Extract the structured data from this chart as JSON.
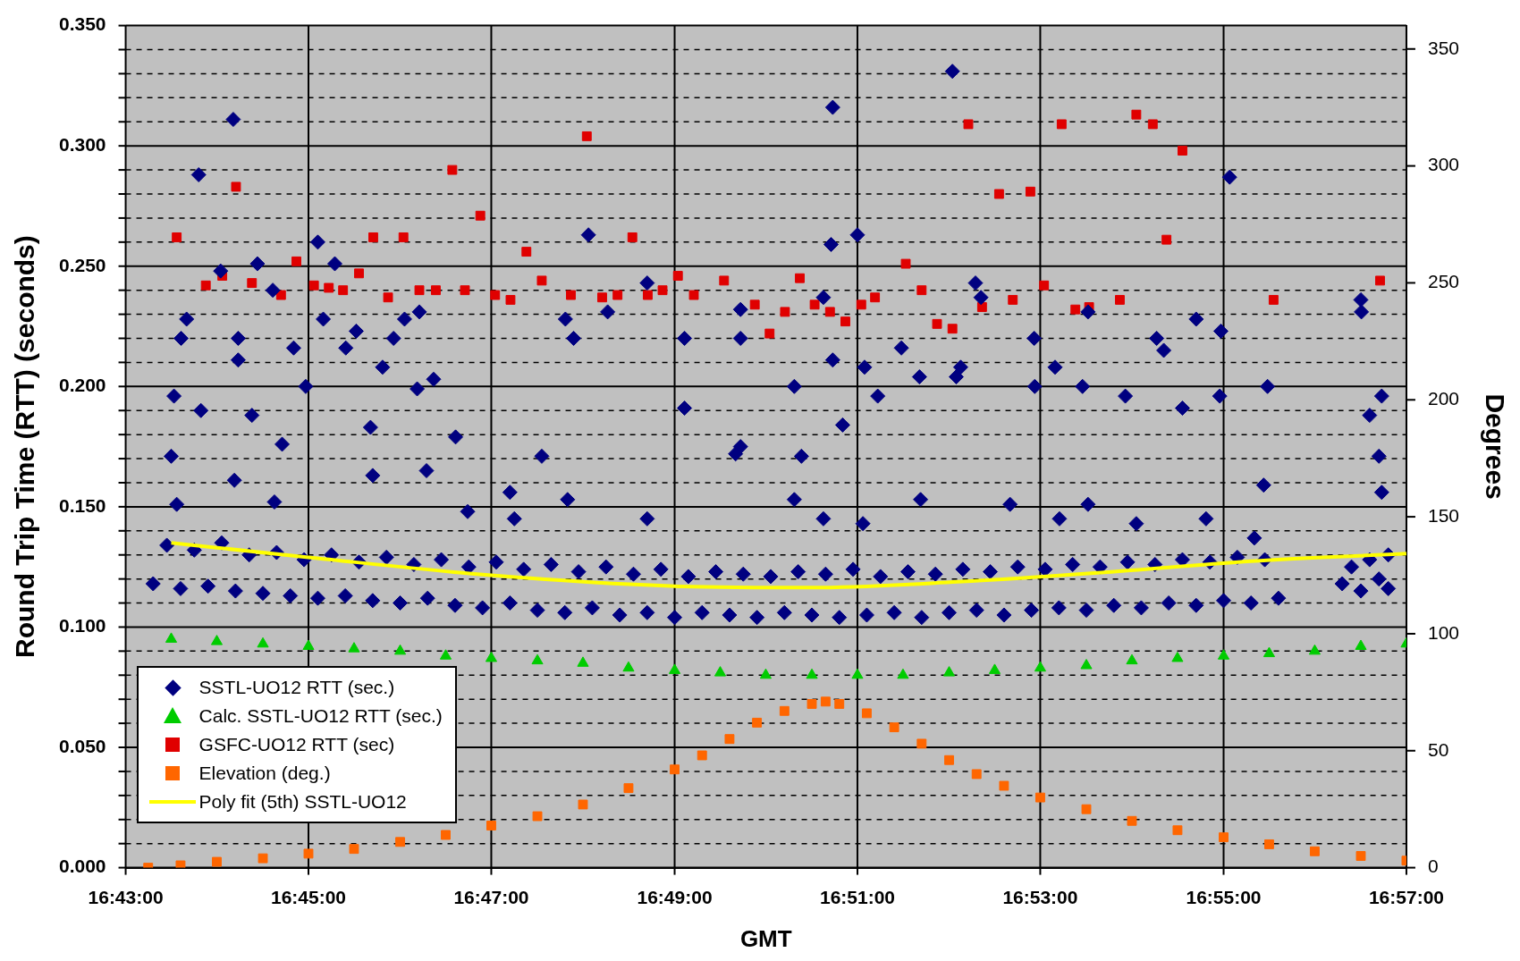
{
  "chart_data": {
    "type": "scatter",
    "xlabel": "GMT",
    "ylabel": "Round Trip Time (RTT) (seconds)",
    "y2label": "Degrees",
    "xlim": [
      16.7167,
      16.95
    ],
    "xticks": [
      {
        "value": 16.7167,
        "label": "16:43:00"
      },
      {
        "value": 16.75,
        "label": "16:45:00"
      },
      {
        "value": 16.7833,
        "label": "16:47:00"
      },
      {
        "value": 16.8167,
        "label": "16:49:00"
      },
      {
        "value": 16.85,
        "label": "16:51:00"
      },
      {
        "value": 16.8833,
        "label": "16:53:00"
      },
      {
        "value": 16.9167,
        "label": "16:55:00"
      },
      {
        "value": 16.95,
        "label": "16:57:00"
      }
    ],
    "ylim": [
      0,
      0.35
    ],
    "yticks": [
      {
        "value": 0,
        "label": "0.000"
      },
      {
        "value": 0.01,
        "label": null
      },
      {
        "value": 0.02,
        "label": null
      },
      {
        "value": 0.03,
        "label": null
      },
      {
        "value": 0.04,
        "label": null
      },
      {
        "value": 0.05,
        "label": "0.050"
      },
      {
        "value": 0.06,
        "label": null
      },
      {
        "value": 0.07,
        "label": null
      },
      {
        "value": 0.08,
        "label": null
      },
      {
        "value": 0.09,
        "label": null
      },
      {
        "value": 0.1,
        "label": "0.100"
      },
      {
        "value": 0.11,
        "label": null
      },
      {
        "value": 0.12,
        "label": null
      },
      {
        "value": 0.13,
        "label": null
      },
      {
        "value": 0.14,
        "label": null
      },
      {
        "value": 0.15,
        "label": "0.150"
      },
      {
        "value": 0.16,
        "label": null
      },
      {
        "value": 0.17,
        "label": null
      },
      {
        "value": 0.18,
        "label": null
      },
      {
        "value": 0.19,
        "label": null
      },
      {
        "value": 0.2,
        "label": "0.200"
      },
      {
        "value": 0.21,
        "label": null
      },
      {
        "value": 0.22,
        "label": null
      },
      {
        "value": 0.23,
        "label": null
      },
      {
        "value": 0.24,
        "label": null
      },
      {
        "value": 0.25,
        "label": "0.250"
      },
      {
        "value": 0.26,
        "label": null
      },
      {
        "value": 0.27,
        "label": null
      },
      {
        "value": 0.28,
        "label": null
      },
      {
        "value": 0.29,
        "label": null
      },
      {
        "value": 0.3,
        "label": "0.300"
      },
      {
        "value": 0.31,
        "label": null
      },
      {
        "value": 0.32,
        "label": null
      },
      {
        "value": 0.33,
        "label": null
      },
      {
        "value": 0.34,
        "label": null
      },
      {
        "value": 0.35,
        "label": "0.350"
      }
    ],
    "y2lim": [
      0,
      360
    ],
    "y2ticks": [
      0,
      50,
      100,
      150,
      200,
      250,
      300,
      350
    ],
    "grid": true,
    "legend": "bottom left",
    "series": [
      {
        "name": "SSTL-UO12 RTT (sec.)",
        "type": "scatter",
        "marker": "diamond",
        "color": "#000080",
        "x": [
          16.7217,
          16.7267,
          16.7317,
          16.7367,
          16.7417,
          16.7467,
          16.7517,
          16.7567,
          16.7617,
          16.7667,
          16.7717,
          16.7767,
          16.7817,
          16.7867,
          16.7917,
          16.7967,
          16.8017,
          16.8067,
          16.8117,
          16.8167,
          16.8217,
          16.8267,
          16.8317,
          16.8367,
          16.8417,
          16.8467,
          16.8517,
          16.8567,
          16.8617,
          16.8667,
          16.8717,
          16.8767,
          16.8817,
          16.8867,
          16.8917,
          16.8967,
          16.9017,
          16.9067,
          16.9117,
          16.9167,
          16.9217,
          16.9267,
          16.7242,
          16.7292,
          16.7342,
          16.7392,
          16.7442,
          16.7492,
          16.7542,
          16.7592,
          16.7642,
          16.7692,
          16.7742,
          16.7792,
          16.7842,
          16.7892,
          16.7942,
          16.7992,
          16.8042,
          16.8092,
          16.8142,
          16.8192,
          16.8242,
          16.8292,
          16.8342,
          16.8392,
          16.8442,
          16.8492,
          16.8542,
          16.8592,
          16.8642,
          16.8692,
          16.8742,
          16.8792,
          16.8842,
          16.8892,
          16.8942,
          16.8992,
          16.9042,
          16.9092,
          16.9142,
          16.9192,
          16.9242,
          16.9383,
          16.94,
          16.9417,
          16.9433,
          16.945,
          16.9467,
          16.9467,
          16.725,
          16.7255,
          16.7268,
          16.7278,
          16.73,
          16.7304,
          16.734,
          16.7363,
          16.7372,
          16.7372,
          16.7397,
          16.7407,
          16.7435,
          16.7452,
          16.7473,
          16.7495,
          16.7517,
          16.7527,
          16.7548,
          16.7568,
          16.7587,
          16.7613,
          16.7635,
          16.7655,
          16.7675,
          16.7698,
          16.7702,
          16.7728,
          16.7768,
          16.779,
          16.7867,
          16.7925,
          16.7968,
          16.7983,
          16.801,
          16.8045,
          16.8117,
          16.8185,
          16.8185,
          16.8287,
          16.8287,
          16.8287,
          16.8385,
          16.8398,
          16.8438,
          16.8452,
          16.8455,
          16.8455,
          16.8473,
          16.85,
          16.8513,
          16.8537,
          16.858,
          16.8613,
          16.8673,
          16.868,
          16.8688,
          16.8715,
          16.8725,
          16.8822,
          16.8823,
          16.886,
          16.891,
          16.892,
          16.8988,
          16.9045,
          16.9058,
          16.9092,
          16.9117,
          16.9162,
          16.916,
          16.9178,
          16.9247,
          16.9417,
          16.9418,
          16.9433,
          16.9455,
          16.945,
          16.9455,
          16.726,
          16.7365,
          16.7438,
          16.7617,
          16.7715,
          16.7875,
          16.7972,
          16.8117,
          16.8278,
          16.8385,
          16.8438,
          16.851,
          16.8615,
          16.8778,
          16.8868,
          16.892,
          16.9008,
          16.9135,
          16.9223,
          16.924
        ],
        "values": [
          0.118,
          0.116,
          0.117,
          0.115,
          0.114,
          0.113,
          0.112,
          0.113,
          0.111,
          0.11,
          0.112,
          0.109,
          0.108,
          0.11,
          0.107,
          0.106,
          0.108,
          0.105,
          0.106,
          0.104,
          0.106,
          0.105,
          0.104,
          0.106,
          0.105,
          0.104,
          0.105,
          0.106,
          0.104,
          0.106,
          0.107,
          0.105,
          0.107,
          0.108,
          0.107,
          0.109,
          0.108,
          0.11,
          0.109,
          0.111,
          0.11,
          0.112,
          0.134,
          0.132,
          0.135,
          0.13,
          0.131,
          0.128,
          0.13,
          0.127,
          0.129,
          0.126,
          0.128,
          0.125,
          0.127,
          0.124,
          0.126,
          0.123,
          0.125,
          0.122,
          0.124,
          0.121,
          0.123,
          0.122,
          0.121,
          0.123,
          0.122,
          0.124,
          0.121,
          0.123,
          0.122,
          0.124,
          0.123,
          0.125,
          0.124,
          0.126,
          0.125,
          0.127,
          0.126,
          0.128,
          0.127,
          0.129,
          0.128,
          0.118,
          0.125,
          0.115,
          0.128,
          0.12,
          0.116,
          0.13,
          0.171,
          0.196,
          0.22,
          0.228,
          0.288,
          0.19,
          0.248,
          0.311,
          0.211,
          0.22,
          0.188,
          0.251,
          0.24,
          0.176,
          0.216,
          0.2,
          0.26,
          0.228,
          0.251,
          0.216,
          0.223,
          0.183,
          0.208,
          0.22,
          0.228,
          0.199,
          0.231,
          0.203,
          0.179,
          0.148,
          0.156,
          0.171,
          0.228,
          0.22,
          0.263,
          0.231,
          0.243,
          0.22,
          0.191,
          0.232,
          0.22,
          0.175,
          0.2,
          0.171,
          0.237,
          0.259,
          0.316,
          0.211,
          0.184,
          0.263,
          0.208,
          0.196,
          0.216,
          0.204,
          0.331,
          0.204,
          0.208,
          0.243,
          0.237,
          0.22,
          0.2,
          0.208,
          0.2,
          0.231,
          0.196,
          0.22,
          0.215,
          0.191,
          0.228,
          0.223,
          0.196,
          0.287,
          0.2,
          0.236,
          0.231,
          0.188,
          0.196,
          0.171,
          0.156,
          0.151,
          0.161,
          0.152,
          0.163,
          0.165,
          0.145,
          0.153,
          0.145,
          0.172,
          0.153,
          0.145,
          0.143,
          0.153,
          0.151,
          0.145,
          0.151,
          0.143,
          0.145,
          0.137,
          0.159
        ]
      },
      {
        "name": "Calc. SSTL-UO12 RTT (sec.)",
        "type": "scatter",
        "marker": "triangle",
        "color": "#00cc00",
        "x": [
          16.725,
          16.7333,
          16.7417,
          16.75,
          16.7583,
          16.7667,
          16.775,
          16.7833,
          16.7917,
          16.8,
          16.8083,
          16.8167,
          16.825,
          16.8333,
          16.8417,
          16.85,
          16.8583,
          16.8667,
          16.875,
          16.8833,
          16.8917,
          16.9,
          16.9083,
          16.9167,
          16.925,
          16.9333,
          16.9417,
          16.95
        ],
        "values": [
          0.095,
          0.094,
          0.093,
          0.092,
          0.091,
          0.09,
          0.088,
          0.087,
          0.086,
          0.085,
          0.083,
          0.082,
          0.081,
          0.08,
          0.08,
          0.08,
          0.08,
          0.081,
          0.082,
          0.083,
          0.084,
          0.086,
          0.087,
          0.088,
          0.089,
          0.09,
          0.092,
          0.093
        ]
      },
      {
        "name": "GSFC-UO12 RTT (sec)",
        "type": "scatter",
        "marker": "square",
        "color": "#e00000",
        "x": [
          16.726,
          16.7313,
          16.7343,
          16.7368,
          16.7397,
          16.745,
          16.7478,
          16.751,
          16.7537,
          16.7563,
          16.7592,
          16.7618,
          16.7645,
          16.7673,
          16.7702,
          16.7732,
          16.7762,
          16.7785,
          16.7813,
          16.784,
          16.7868,
          16.7897,
          16.7925,
          16.7978,
          16.8007,
          16.8035,
          16.8063,
          16.809,
          16.8118,
          16.8145,
          16.8173,
          16.8202,
          16.8257,
          16.8313,
          16.834,
          16.8368,
          16.8395,
          16.8422,
          16.845,
          16.8478,
          16.8507,
          16.8532,
          16.8588,
          16.8617,
          16.8645,
          16.8673,
          16.8702,
          16.8727,
          16.8758,
          16.8783,
          16.8815,
          16.884,
          16.8872,
          16.8897,
          16.8922,
          16.8978,
          16.9008,
          16.9038,
          16.9063,
          16.9092,
          16.9258,
          16.9452
        ],
        "values": [
          0.262,
          0.242,
          0.246,
          0.283,
          0.243,
          0.238,
          0.252,
          0.242,
          0.241,
          0.24,
          0.247,
          0.262,
          0.237,
          0.262,
          0.24,
          0.24,
          0.29,
          0.24,
          0.271,
          0.238,
          0.236,
          0.256,
          0.244,
          0.238,
          0.304,
          0.237,
          0.238,
          0.262,
          0.238,
          0.24,
          0.246,
          0.238,
          0.244,
          0.234,
          0.222,
          0.231,
          0.245,
          0.234,
          0.231,
          0.227,
          0.234,
          0.237,
          0.251,
          0.24,
          0.226,
          0.224,
          0.309,
          0.233,
          0.28,
          0.236,
          0.281,
          0.242,
          0.309,
          0.232,
          0.233,
          0.236,
          0.313,
          0.309,
          0.261,
          0.298,
          0.236,
          0.244
        ]
      },
      {
        "name": "Elevation (deg.)",
        "type": "scatter",
        "marker": "square",
        "color": "#ff6600",
        "axis": "y2",
        "x": [
          16.7208,
          16.7267,
          16.7333,
          16.7417,
          16.75,
          16.7583,
          16.7667,
          16.775,
          16.7833,
          16.7917,
          16.8,
          16.8083,
          16.8167,
          16.8217,
          16.8267,
          16.8317,
          16.8367,
          16.8417,
          16.8442,
          16.8467,
          16.8517,
          16.8567,
          16.8617,
          16.8667,
          16.8717,
          16.8767,
          16.8833,
          16.8917,
          16.9,
          16.9083,
          16.9167,
          16.925,
          16.9333,
          16.9417,
          16.95
        ],
        "values": [
          0,
          1,
          2.5,
          4,
          6,
          8,
          11,
          14,
          18,
          22,
          27,
          34,
          42,
          48,
          55,
          62,
          67,
          70,
          71,
          70,
          66,
          60,
          53,
          46,
          40,
          35,
          30,
          25,
          20,
          16,
          13,
          10,
          7,
          5,
          3
        ]
      },
      {
        "name": "Poly fit (5th) SSTL-UO12",
        "type": "line",
        "marker": "none",
        "color": "#ffff00",
        "x": [
          16.725,
          16.75,
          16.7833,
          16.8167,
          16.8417,
          16.8683,
          16.895,
          16.9217,
          16.95
        ],
        "values": [
          0.135,
          0.129,
          0.1215,
          0.117,
          0.1164,
          0.1188,
          0.1227,
          0.1274,
          0.1305
        ]
      }
    ]
  }
}
